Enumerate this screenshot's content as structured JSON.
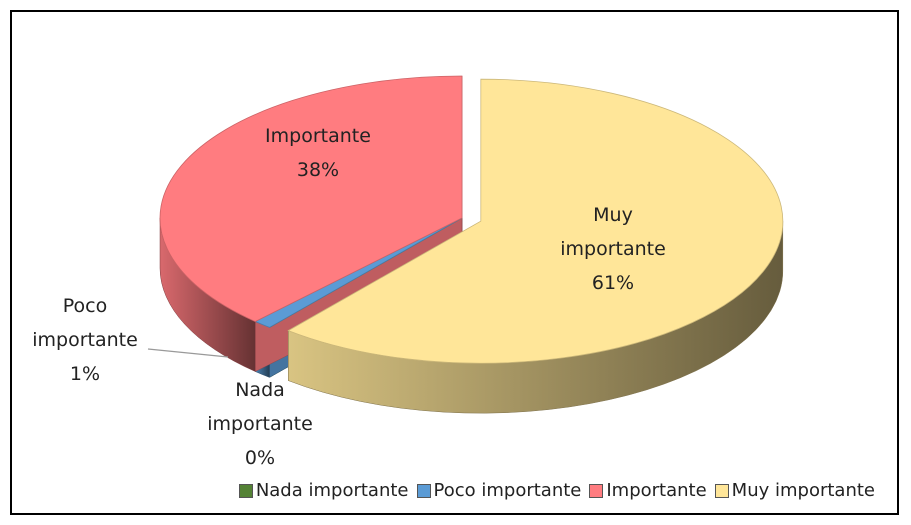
{
  "chart_data": {
    "type": "pie3d",
    "categories": [
      "Nada importante",
      "Poco importante",
      "Importante",
      "Muy importante"
    ],
    "values": [
      0,
      1,
      38,
      61
    ],
    "value_labels": [
      "0%",
      "1%",
      "38%",
      "61%"
    ],
    "colors": [
      "#548235",
      "#5b9bd5",
      "#ff7c80",
      "#ffe699"
    ],
    "legend": "bottom"
  }
}
